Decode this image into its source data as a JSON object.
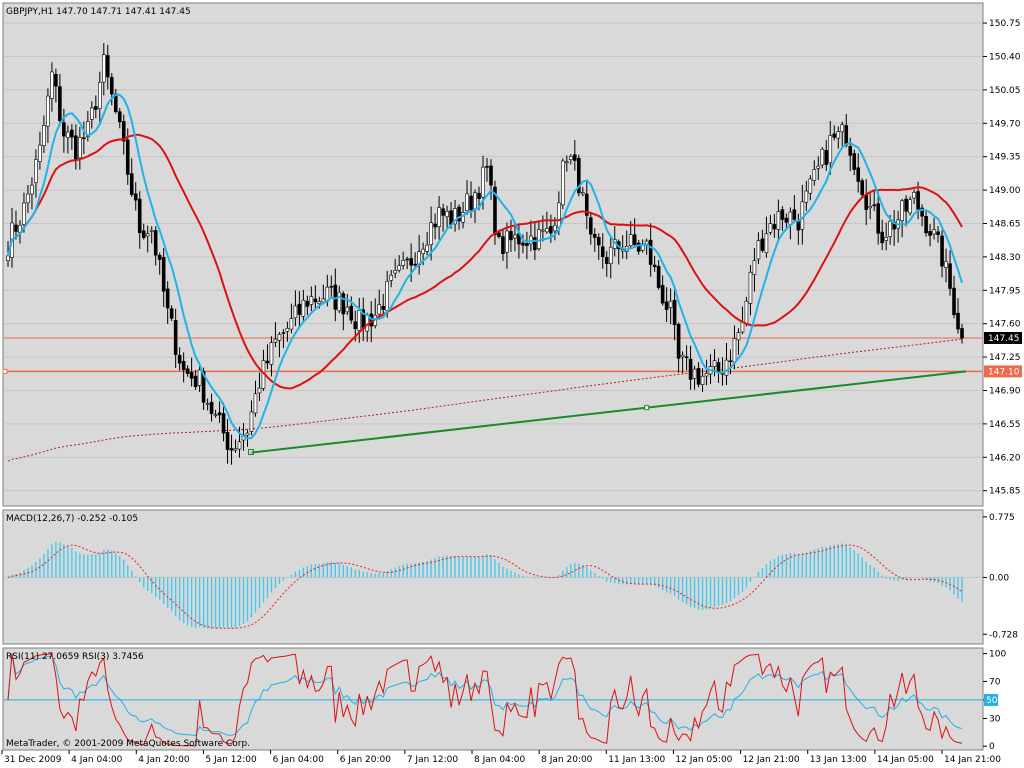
{
  "app": {
    "symbol_line": "GBPJPY,H1  147.70 147.71 147.41 147.45",
    "copyright": "MetaTrader, © 2001-2009 MetaQuotes Software Corp."
  },
  "colors": {
    "plot_bg": "#d9d9d9",
    "candle": "#000000",
    "ma_fast": "#1fb4e8",
    "ma_slow": "#dd1111",
    "ma_long_dotted": "#aa2222",
    "trendline": "#1a8a2a",
    "hline": "#f06a4a",
    "macd_hist": "#46c8ec",
    "macd_signal": "#ee2222",
    "rsi_fast": "#dd1111",
    "rsi_slow": "#22b0e6",
    "rsi_level": "#22b0e6"
  },
  "chart_data": [
    {
      "type": "candlestick",
      "name": "price",
      "title": "GBPJPY,H1  147.70 147.71 147.41 147.45",
      "ylim": [
        145.7,
        150.95
      ],
      "yticks": [
        "150.75",
        "150.40",
        "150.05",
        "149.70",
        "149.35",
        "149.00",
        "148.65",
        "148.30",
        "147.95",
        "147.60",
        "147.25",
        "146.90",
        "146.55",
        "146.20",
        "145.85"
      ],
      "ytick_values": [
        150.75,
        150.4,
        150.05,
        149.7,
        149.35,
        149.0,
        148.65,
        148.3,
        147.95,
        147.6,
        147.25,
        146.9,
        146.55,
        146.2,
        145.85
      ],
      "xlabels": [
        "31 Dec 2009",
        "4 Jan 04:00",
        "4 Jan 20:00",
        "5 Jan 12:00",
        "6 Jan 04:00",
        "6 Jan 20:00",
        "7 Jan 12:00",
        "8 Jan 04:00",
        "8 Jan 20:00",
        "11 Jan 13:00",
        "12 Jan 05:00",
        "12 Jan 21:00",
        "13 Jan 13:00",
        "14 Jan 05:00",
        "14 Jan 21:00"
      ],
      "bar_count": 240,
      "close_anchors": [
        [
          0,
          148.45
        ],
        [
          4,
          148.8
        ],
        [
          8,
          149.4
        ],
        [
          11,
          150.2
        ],
        [
          14,
          149.6
        ],
        [
          17,
          149.45
        ],
        [
          20,
          149.6
        ],
        [
          24,
          150.3
        ],
        [
          27,
          149.8
        ],
        [
          30,
          149.2
        ],
        [
          33,
          148.6
        ],
        [
          36,
          148.6
        ],
        [
          40,
          147.7
        ],
        [
          44,
          147.1
        ],
        [
          48,
          147.0
        ],
        [
          52,
          146.6
        ],
        [
          56,
          146.3
        ],
        [
          60,
          146.5
        ],
        [
          63,
          147.0
        ],
        [
          67,
          147.4
        ],
        [
          71,
          147.6
        ],
        [
          75,
          147.85
        ],
        [
          80,
          147.9
        ],
        [
          85,
          147.8
        ],
        [
          88,
          147.6
        ],
        [
          92,
          147.7
        ],
        [
          96,
          148.0
        ],
        [
          100,
          148.2
        ],
        [
          104,
          148.5
        ],
        [
          108,
          148.75
        ],
        [
          112,
          148.7
        ],
        [
          116,
          148.9
        ],
        [
          120,
          149.2
        ],
        [
          123,
          148.4
        ],
        [
          128,
          148.5
        ],
        [
          132,
          148.5
        ],
        [
          136,
          148.55
        ],
        [
          140,
          149.4
        ],
        [
          143,
          149.1
        ],
        [
          146,
          148.4
        ],
        [
          150,
          148.3
        ],
        [
          154,
          148.45
        ],
        [
          158,
          148.4
        ],
        [
          160,
          148.4
        ],
        [
          163,
          148.0
        ],
        [
          166,
          147.7
        ],
        [
          168,
          147.2
        ],
        [
          171,
          147.1
        ],
        [
          174,
          147.05
        ],
        [
          178,
          147.1
        ],
        [
          181,
          147.3
        ],
        [
          184,
          147.6
        ],
        [
          187,
          148.3
        ],
        [
          190,
          148.6
        ],
        [
          194,
          148.75
        ],
        [
          198,
          148.7
        ],
        [
          202,
          149.1
        ],
        [
          206,
          149.5
        ],
        [
          210,
          149.6
        ],
        [
          213,
          149.2
        ],
        [
          216,
          148.8
        ],
        [
          219,
          148.55
        ],
        [
          223,
          148.7
        ],
        [
          227,
          148.9
        ],
        [
          231,
          148.6
        ],
        [
          234,
          148.3
        ],
        [
          237,
          147.8
        ],
        [
          239,
          147.45
        ]
      ],
      "series": [
        {
          "name": "",
          "kind": "ma_fast",
          "period": 8
        },
        {
          "name": "",
          "kind": "ma_slow",
          "period": 30
        },
        {
          "name": "",
          "kind": "ma_long",
          "period": 200
        }
      ],
      "horizontal_lines": [
        {
          "value": 147.45,
          "label": "147.45",
          "style": "bid"
        },
        {
          "value": 147.1,
          "label": "147.10",
          "style": "level"
        }
      ],
      "trendline": {
        "from": [
          61,
          146.25
        ],
        "to": [
          240,
          147.1
        ],
        "marker_bar": 160
      }
    },
    {
      "type": "bar",
      "name": "macd",
      "title": "MACD(12,26,7) -0.252 -0.105",
      "ylim": [
        -0.84,
        0.85
      ],
      "yticks": [
        "0.775",
        "0.00",
        "-0.728"
      ],
      "ytick_values": [
        0.775,
        0.0,
        -0.728
      ],
      "zero_line": true,
      "series": [
        {
          "name": "",
          "kind": "histogram"
        },
        {
          "name": "",
          "kind": "signal",
          "style": "dotted"
        }
      ]
    },
    {
      "type": "line",
      "name": "rsi",
      "title": "RSI(11) 27.0659  RSI(3) 3.7456",
      "ylim": [
        -3,
        105
      ],
      "yticks": [
        "100",
        "70",
        "50",
        "30",
        "0"
      ],
      "ytick_values": [
        100,
        70,
        50,
        30,
        0
      ],
      "level_line": {
        "value": 50,
        "label": "50"
      },
      "series": [
        {
          "name": "",
          "kind": "rsi_fast",
          "period": 3
        },
        {
          "name": "",
          "kind": "rsi_slow",
          "period": 11
        }
      ]
    }
  ]
}
